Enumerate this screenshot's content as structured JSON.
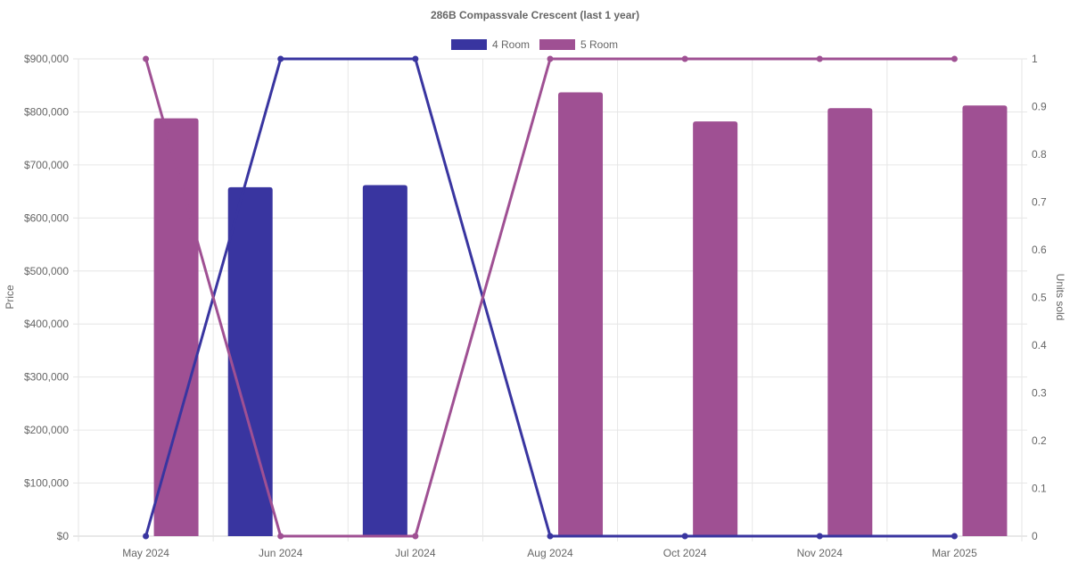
{
  "chart_data": {
    "type": "bar",
    "title": "286B Compassvale Crescent (last 1 year)",
    "categories": [
      "May 2024",
      "Jun 2024",
      "Jul 2024",
      "Aug 2024",
      "Oct 2024",
      "Nov 2024",
      "Mar 2025"
    ],
    "ylabel": "Price",
    "y2label": "Units sold",
    "ylim": [
      0,
      900000
    ],
    "y2lim": [
      0,
      1
    ],
    "y_ticks": [
      "$0",
      "$100,000",
      "$200,000",
      "$300,000",
      "$400,000",
      "$500,000",
      "$600,000",
      "$700,000",
      "$800,000",
      "$900,000"
    ],
    "y2_ticks": [
      "0",
      "0.1",
      "0.2",
      "0.3",
      "0.4",
      "0.5",
      "0.6",
      "0.7",
      "0.8",
      "0.9",
      "1"
    ],
    "grid": true,
    "legend_position": "top-center",
    "legend": [
      {
        "label": "4 Room",
        "color": "#3935a0"
      },
      {
        "label": "5 Room",
        "color": "#9f5093"
      }
    ],
    "price_series": [
      {
        "name": "4 Room",
        "color": "#3935a0",
        "values": [
          null,
          658000,
          662000,
          null,
          null,
          null,
          null
        ]
      },
      {
        "name": "5 Room",
        "color": "#9f5093",
        "values": [
          788000,
          null,
          null,
          837000,
          782000,
          807000,
          812000
        ]
      }
    ],
    "units_series": [
      {
        "name": "4 Room",
        "color": "#3935a0",
        "values": [
          0,
          1,
          1,
          0,
          0,
          0,
          0
        ]
      },
      {
        "name": "5 Room",
        "color": "#9f5093",
        "values": [
          1,
          0,
          0,
          1,
          1,
          1,
          1
        ]
      }
    ]
  }
}
